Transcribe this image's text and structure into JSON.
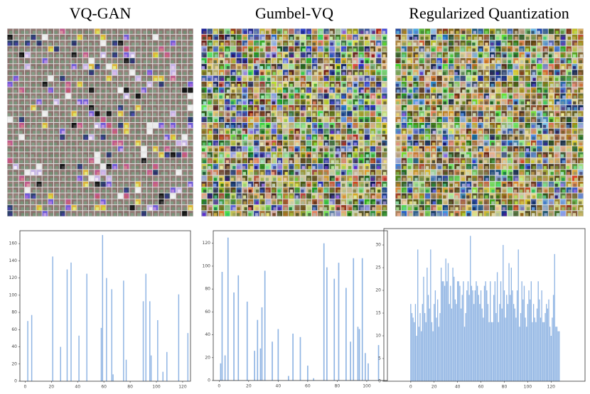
{
  "chart_data": [
    {
      "type": "bar",
      "title": "VQ-GAN",
      "color": "#8fb4e3",
      "x": [
        2,
        5,
        21,
        27,
        32,
        35,
        41,
        47,
        58,
        59,
        62,
        66,
        67,
        75,
        77,
        90,
        92,
        95,
        96,
        101,
        105,
        108,
        117,
        124
      ],
      "values": [
        70,
        77,
        145,
        40,
        130,
        138,
        53,
        125,
        62,
        170,
        120,
        107,
        8,
        117,
        25,
        93,
        125,
        93,
        30,
        71,
        11,
        34,
        101,
        56
      ],
      "xlim": [
        -4,
        126
      ],
      "ylim": [
        0,
        175
      ],
      "xticks": [
        0,
        20,
        40,
        60,
        80,
        100,
        120
      ],
      "yticks": [
        0,
        20,
        40,
        60,
        80,
        100,
        120,
        140,
        160
      ]
    },
    {
      "type": "bar",
      "title": "Gumbel-VQ",
      "color": "#8fb4e3",
      "x": [
        1,
        2,
        4,
        6,
        10,
        13,
        19,
        24,
        26,
        28,
        29,
        31,
        36,
        40,
        47,
        50,
        55,
        60,
        64,
        71,
        73,
        78,
        81,
        86,
        89,
        91,
        94,
        95,
        97,
        99,
        101,
        108
      ],
      "values": [
        15,
        95,
        22,
        125,
        77,
        92,
        69,
        26,
        53,
        28,
        64,
        96,
        34,
        45,
        4,
        41,
        38,
        13,
        2,
        120,
        99,
        89,
        103,
        81,
        34,
        107,
        47,
        45,
        107,
        24,
        15,
        31
      ],
      "xlim": [
        -4,
        114
      ],
      "ylim": [
        0,
        131
      ],
      "xticks": [
        0,
        20,
        40,
        60,
        80,
        100
      ],
      "yticks": [
        0,
        20,
        40,
        60,
        80,
        100,
        120
      ]
    },
    {
      "type": "bar",
      "title": "Regularized Quantization",
      "color": "#8fb4e3",
      "x": [
        0,
        1,
        2,
        3,
        4,
        5,
        6,
        7,
        8,
        9,
        10,
        11,
        12,
        13,
        14,
        15,
        16,
        17,
        18,
        19,
        20,
        21,
        22,
        23,
        24,
        25,
        26,
        27,
        28,
        29,
        30,
        31,
        32,
        33,
        34,
        35,
        36,
        37,
        38,
        39,
        40,
        41,
        42,
        43,
        44,
        45,
        46,
        47,
        48,
        49,
        50,
        51,
        52,
        53,
        54,
        55,
        56,
        57,
        58,
        59,
        60,
        61,
        62,
        63,
        64,
        65,
        66,
        67,
        68,
        69,
        70,
        71,
        72,
        73,
        74,
        75,
        76,
        77,
        78,
        79,
        80,
        81,
        82,
        83,
        84,
        85,
        86,
        87,
        88,
        89,
        90,
        91,
        92,
        93,
        94,
        95,
        96,
        97,
        98,
        99,
        100,
        101,
        102,
        103,
        104,
        105,
        106,
        107,
        108,
        109,
        110,
        111,
        112,
        113,
        114,
        115,
        116,
        117,
        118,
        119,
        120,
        121,
        122,
        123,
        124,
        125,
        126,
        127
      ],
      "values": [
        17,
        15,
        14,
        13,
        17,
        10,
        29,
        12,
        15,
        11,
        17,
        23,
        15,
        13,
        25,
        19,
        16,
        29,
        13,
        11,
        17,
        20,
        14,
        18,
        12,
        15,
        25,
        22,
        22,
        21,
        27,
        22,
        26,
        17,
        21,
        16,
        25,
        23,
        18,
        17,
        22,
        22,
        21,
        16,
        19,
        22,
        12,
        15,
        20,
        22,
        19,
        32,
        21,
        20,
        17,
        20,
        22,
        21,
        19,
        17,
        20,
        16,
        14,
        21,
        22,
        20,
        17,
        13,
        22,
        13,
        13,
        19,
        22,
        15,
        24,
        13,
        17,
        22,
        16,
        30,
        20,
        14,
        19,
        17,
        26,
        19,
        25,
        20,
        17,
        16,
        14,
        20,
        29,
        12,
        15,
        22,
        18,
        21,
        14,
        12,
        17,
        20,
        18,
        22,
        13,
        17,
        14,
        13,
        16,
        22,
        18,
        14,
        20,
        13,
        13,
        15,
        17,
        16,
        18,
        12,
        10,
        14,
        19,
        28,
        12,
        12,
        11,
        11
      ],
      "xlim": [
        -23,
        149
      ],
      "ylim": [
        0,
        33.6
      ],
      "xticks": [
        0,
        20,
        40,
        60,
        80,
        100,
        120
      ],
      "yticks": [
        0,
        5,
        10,
        15,
        20,
        25,
        30
      ]
    }
  ]
}
